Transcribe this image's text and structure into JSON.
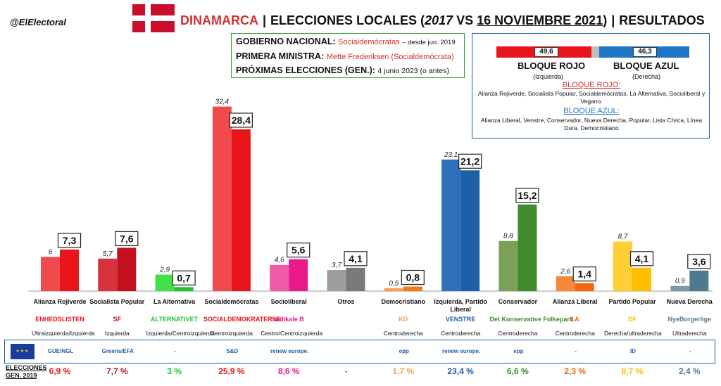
{
  "header": {
    "handle": "@ElElectoral",
    "country": "DINAMARCA",
    "sep": "|",
    "title_a": "ELECCIONES LOCALES (",
    "title_year": "2017",
    "title_vs": " VS ",
    "title_date": "16 NOVIEMBRE 2021",
    "title_close": ")",
    "title_result": "RESULTADOS"
  },
  "government": {
    "gov_label": "GOBIERNO NACIONAL:",
    "gov_value": "Socialdemócratas",
    "gov_since": "– desde jun. 2019",
    "pm_label": "PRIMERA MINISTRA:",
    "pm_value": "Mette Frederiksen (Socialdemócrata)",
    "next_label": "PRÓXIMAS ELECCIONES (GEN.):",
    "next_value": "4 junio 2023 (o antes)"
  },
  "blocs": {
    "red_value": "49,6",
    "blue_value": "46,3",
    "red_name": "BLOQUE ROJO",
    "blue_name": "BLOQUE AZUL",
    "red_side": "(Izquierda)",
    "blue_side": "(Derecha)",
    "red_heading": "BLOQUE ROJO:",
    "red_members": "Alianza Rojiverde, Socialista Popular, Socialdemócratas, La Alternativa, Socioliberal y Vegano.",
    "blue_heading": "BLOQUE AZUL:",
    "blue_members": "Alianza Liberal, Venstre, Conservador, Nueva Derecha, Popular, Lista Cívica, Línea Dura, Democristiano"
  },
  "chart_data": {
    "type": "bar",
    "categories": [
      "Alianza Rojiverde",
      "Socialista Popular",
      "La Alternativa",
      "Socialdemócratas",
      "Socioliberal",
      "Otros",
      "Democristiano",
      "Izquierda, Partido Liberal",
      "Conservador",
      "Alianza Liberal",
      "Partido Popular",
      "Nueva Derecha"
    ],
    "series": [
      {
        "name": "2017",
        "values": [
          6,
          5.7,
          2.9,
          32.4,
          4.6,
          3.7,
          0.5,
          23.1,
          8.8,
          2.6,
          8.7,
          0.9
        ]
      },
      {
        "name": "2021",
        "values": [
          7.3,
          7.6,
          0.7,
          28.4,
          5.6,
          4.1,
          0.8,
          21.2,
          15.2,
          1.4,
          4.1,
          3.6
        ]
      }
    ],
    "labels_2017": [
      "6",
      "5,7",
      "2,9",
      "32,4",
      "4,6",
      "3,7",
      "0,5",
      "23,1",
      "8,8",
      "2,6",
      "8,7",
      "0,9"
    ],
    "labels_2021": [
      "7,3",
      "7,6",
      "0,7",
      "28,4",
      "5,6",
      "4,1",
      "0,8",
      "21,2",
      "15,2",
      "1,4",
      "4,1",
      "3,6"
    ],
    "colors_2017": [
      "#ef4a4d",
      "#d6323e",
      "#42e04a",
      "#ef4a4d",
      "#f058a8",
      "#9e9e9e",
      "#f7a053",
      "#2f6fb8",
      "#7aa05a",
      "#f5883a",
      "#ffcf33",
      "#7a9aa8"
    ],
    "colors_2021": [
      "#e8151b",
      "#c4101e",
      "#1ec62c",
      "#e8151b",
      "#ea1a8c",
      "#7a7a7a",
      "#f57c15",
      "#1f5fa8",
      "#3d8b2a",
      "#f2650d",
      "#ffbf00",
      "#4d7a8e"
    ],
    "ylim": [
      0,
      34
    ]
  },
  "logos": [
    "ENHEDSLISTEN",
    "SF",
    "ALTERNATIVET",
    "SOCIALDEMOKRATERNE",
    "radikale B",
    "",
    "KD",
    "VENSTRE",
    "Det Konservative Folkeparti",
    "LA",
    "DF",
    "NyeBorgerlige"
  ],
  "ideologies": [
    "Ultraizquierda/Izquierda",
    "Izquierda",
    "Izquierda/Centroizquierda",
    "Centroizquierda",
    "Centro/Centroizquierda",
    "",
    "Centroderecha",
    "Centroderecha",
    "Centroderecha",
    "Centroderecha",
    "Derecha/ultraderecha",
    "Ultraderecha"
  ],
  "eu_groups": [
    "GUE/NGL",
    "Greens/EFA",
    "-",
    "S&D",
    "renew europe.",
    "",
    "epp",
    "renew europe.",
    "epp",
    "-",
    "ID",
    "-"
  ],
  "elections_label_1": "ELECCIONES",
  "elections_label_2": "GEN. 2019",
  "election_results": [
    "6,9 %",
    "7,7 %",
    "3 %",
    "25,9 %",
    "8,6 %",
    "-",
    "1,7 %",
    "23,4 %",
    "6,6 %",
    "2,3 %",
    "8,7 %",
    "2,4 %"
  ],
  "election_colors": [
    "#e8151b",
    "#c4101e",
    "#1ec62c",
    "#e8151b",
    "#ea1a8c",
    "#7a7a7a",
    "#f7a053",
    "#1f5fa8",
    "#3d8b2a",
    "#f2650d",
    "#ffbf00",
    "#4d7a8e"
  ]
}
